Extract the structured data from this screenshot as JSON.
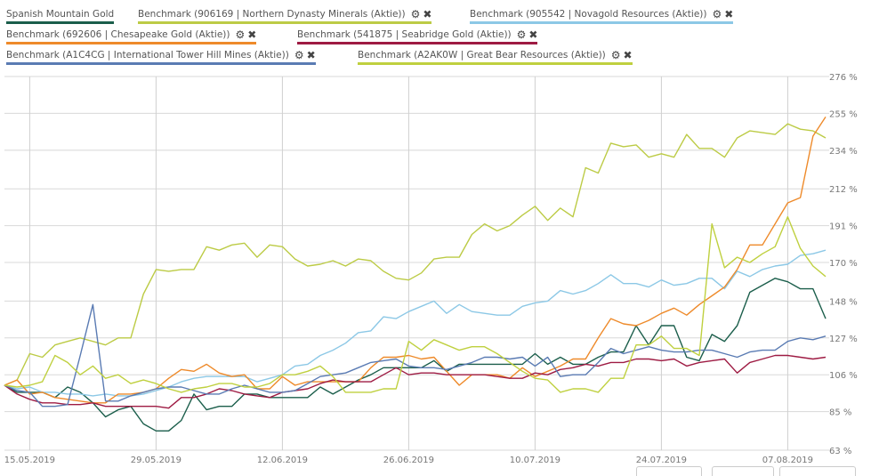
{
  "legend": [
    {
      "label": "Spanish Mountain Gold",
      "color": "#1b5e4b",
      "removable": false
    },
    {
      "label": "Benchmark (906169 | Northern Dynasty Minerals (Aktie))",
      "color": "#bccb45",
      "removable": true
    },
    {
      "label": "Benchmark (905542 | Novagold Resources (Aktie))",
      "color": "#8cc8e6",
      "removable": true
    },
    {
      "label": "Benchmark (692606 | Chesapeake Gold (Aktie))",
      "color": "#ee8a2a",
      "removable": true
    },
    {
      "label": "Benchmark (541875 | Seabridge Gold (Aktie))",
      "color": "#9e1b43",
      "removable": true
    },
    {
      "label": "Benchmark (A1C4CG | International Tower Hill Mines (Aktie))",
      "color": "#5a7bb3",
      "removable": true
    },
    {
      "label": "Benchmark (A2AK0W | Great Bear Resources (Aktie))",
      "color": "#bfd03f",
      "removable": true
    }
  ],
  "icons": {
    "settings": "gear-icon",
    "remove": "close-icon"
  },
  "chart_data": {
    "type": "line",
    "title": "",
    "xlabel": "",
    "ylabel": "",
    "ylim": [
      63,
      276
    ],
    "y_ticks": [
      "276 %",
      "255 %",
      "234 %",
      "212 %",
      "191 %",
      "170 %",
      "148 %",
      "127 %",
      "106 %",
      "85 %",
      "63 %"
    ],
    "y_tick_values": [
      276,
      255,
      234,
      212,
      191,
      170,
      148,
      127,
      106,
      85,
      63
    ],
    "x_ticks": [
      "15.05.2019",
      "29.05.2019",
      "12.06.2019",
      "26.06.2019",
      "10.07.2019",
      "24.07.2019",
      "07.08.2019"
    ],
    "grid": true,
    "legend_placement": "top",
    "x": [
      "13.05.2019",
      "14.05.2019",
      "15.05.2019",
      "16.05.2019",
      "17.05.2019",
      "20.05.2019",
      "21.05.2019",
      "22.05.2019",
      "23.05.2019",
      "24.05.2019",
      "27.05.2019",
      "28.05.2019",
      "29.05.2019",
      "30.05.2019",
      "31.05.2019",
      "03.06.2019",
      "04.06.2019",
      "05.06.2019",
      "06.06.2019",
      "07.06.2019",
      "10.06.2019",
      "11.06.2019",
      "12.06.2019",
      "13.06.2019",
      "14.06.2019",
      "17.06.2019",
      "18.06.2019",
      "19.06.2019",
      "20.06.2019",
      "21.06.2019",
      "24.06.2019",
      "25.06.2019",
      "26.06.2019",
      "27.06.2019",
      "28.06.2019",
      "01.07.2019",
      "02.07.2019",
      "03.07.2019",
      "04.07.2019",
      "05.07.2019",
      "08.07.2019",
      "09.07.2019",
      "10.07.2019",
      "11.07.2019",
      "12.07.2019",
      "15.07.2019",
      "16.07.2019",
      "17.07.2019",
      "18.07.2019",
      "19.07.2019",
      "22.07.2019",
      "23.07.2019",
      "24.07.2019",
      "25.07.2019",
      "26.07.2019",
      "29.07.2019",
      "30.07.2019",
      "31.07.2019",
      "01.08.2019",
      "02.08.2019",
      "05.08.2019",
      "06.08.2019",
      "07.08.2019",
      "08.08.2019",
      "09.08.2019",
      "12.08.2019"
    ],
    "series": [
      {
        "name": "Spanish Mountain Gold",
        "color": "#1b5e4b",
        "values": [
          100,
          96,
          96,
          96,
          93,
          99,
          96,
          90,
          82,
          86,
          88,
          78,
          74,
          74,
          80,
          95,
          86,
          88,
          88,
          95,
          95,
          93,
          93,
          93,
          93,
          99,
          95,
          99,
          103,
          106,
          110,
          110,
          110,
          110,
          114,
          108,
          112,
          112,
          112,
          112,
          112,
          112,
          118,
          112,
          116,
          112,
          112,
          116,
          119,
          119,
          134,
          123,
          134,
          134,
          116,
          114,
          129,
          125,
          134,
          153,
          157,
          161,
          159,
          155,
          155,
          138
        ]
      },
      {
        "name": "Benchmark (906169 | Northern Dynasty Minerals (Aktie))",
        "color": "#bccb45",
        "values": [
          100,
          103,
          118,
          116,
          123,
          125,
          127,
          125,
          123,
          127,
          127,
          152,
          166,
          165,
          166,
          166,
          179,
          177,
          180,
          181,
          173,
          180,
          179,
          172,
          168,
          169,
          171,
          168,
          172,
          171,
          165,
          161,
          160,
          164,
          172,
          173,
          173,
          186,
          192,
          188,
          191,
          197,
          202,
          194,
          201,
          196,
          224,
          221,
          238,
          236,
          237,
          230,
          232,
          230,
          243,
          235,
          235,
          230,
          241,
          245,
          244,
          243,
          249,
          246,
          245,
          241
        ]
      },
      {
        "name": "Benchmark (905542 | Novagold Resources (Aktie))",
        "color": "#8cc8e6",
        "values": [
          100,
          98,
          99,
          96,
          96,
          95,
          95,
          94,
          95,
          94,
          94,
          95,
          97,
          99,
          102,
          104,
          105,
          105,
          105,
          105,
          102,
          104,
          106,
          111,
          112,
          117,
          120,
          124,
          130,
          131,
          139,
          138,
          142,
          145,
          148,
          141,
          146,
          142,
          141,
          140,
          140,
          145,
          147,
          148,
          154,
          152,
          154,
          158,
          163,
          158,
          158,
          156,
          160,
          157,
          158,
          161,
          161,
          155,
          165,
          162,
          166,
          168,
          169,
          174,
          175,
          177
        ]
      },
      {
        "name": "Benchmark (692606 | Chesapeake Gold (Aktie))",
        "color": "#ee8a2a",
        "values": [
          100,
          103,
          95,
          96,
          93,
          92,
          91,
          90,
          90,
          95,
          95,
          96,
          98,
          104,
          109,
          108,
          112,
          107,
          105,
          106,
          98,
          98,
          105,
          100,
          102,
          102,
          102,
          102,
          102,
          110,
          116,
          116,
          117,
          115,
          116,
          108,
          100,
          106,
          106,
          106,
          104,
          110,
          105,
          108,
          111,
          115,
          115,
          127,
          138,
          135,
          134,
          137,
          141,
          144,
          140,
          146,
          151,
          156,
          166,
          180,
          180,
          192,
          204,
          207,
          242,
          253
        ]
      },
      {
        "name": "Benchmark (541875 | Seabridge Gold (Aktie))",
        "color": "#9e1b43",
        "values": [
          100,
          95,
          92,
          90,
          90,
          89,
          89,
          90,
          88,
          88,
          88,
          88,
          88,
          87,
          93,
          93,
          95,
          98,
          97,
          95,
          94,
          93,
          96,
          97,
          98,
          101,
          103,
          102,
          102,
          102,
          106,
          110,
          106,
          107,
          107,
          106,
          106,
          106,
          106,
          105,
          104,
          104,
          107,
          106,
          109,
          110,
          112,
          111,
          113,
          113,
          115,
          115,
          114,
          115,
          111,
          113,
          114,
          115,
          107,
          113,
          115,
          117,
          117,
          116,
          115,
          116
        ]
      },
      {
        "name": "Benchmark (A1C4CG | International Tower Hill Mines (Aktie))",
        "color": "#5a7bb3",
        "values": [
          100,
          97,
          96,
          88,
          88,
          89,
          117,
          146,
          91,
          91,
          94,
          96,
          98,
          99,
          99,
          97,
          95,
          95,
          98,
          100,
          98,
          96,
          96,
          97,
          101,
          105,
          106,
          107,
          110,
          113,
          114,
          115,
          111,
          110,
          110,
          109,
          111,
          113,
          116,
          116,
          115,
          116,
          111,
          116,
          105,
          106,
          106,
          113,
          121,
          118,
          120,
          122,
          120,
          119,
          119,
          120,
          120,
          118,
          116,
          119,
          120,
          120,
          125,
          127,
          126,
          128
        ]
      },
      {
        "name": "Benchmark (A2AK0W | Great Bear Resources (Aktie))",
        "color": "#bfd03f",
        "values": [
          100,
          99,
          100,
          102,
          117,
          113,
          106,
          111,
          104,
          106,
          101,
          103,
          101,
          98,
          96,
          98,
          99,
          101,
          101,
          99,
          99,
          101,
          106,
          106,
          108,
          111,
          105,
          96,
          96,
          96,
          98,
          98,
          125,
          120,
          126,
          123,
          120,
          122,
          122,
          118,
          113,
          108,
          104,
          103,
          96,
          98,
          98,
          96,
          104,
          104,
          123,
          123,
          128,
          121,
          121,
          117,
          192,
          167,
          173,
          170,
          175,
          179,
          196,
          178,
          168,
          162
        ]
      }
    ]
  }
}
